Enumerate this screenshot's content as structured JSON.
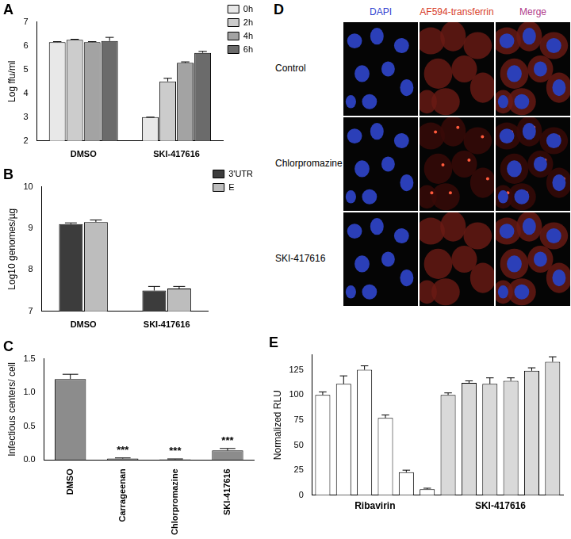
{
  "chart_data": [
    {
      "title": "A",
      "type": "bar",
      "categories": [
        "DMSO",
        "SKI-417616"
      ],
      "series": [
        {
          "name": "0h",
          "color": "#e8e8e8",
          "values": [
            6.15,
            3.0
          ],
          "errors": [
            0.02,
            0
          ]
        },
        {
          "name": "2h",
          "color": "#cccccc",
          "values": [
            6.25,
            4.5
          ],
          "errors": [
            0.02,
            0.13
          ]
        },
        {
          "name": "4h",
          "color": "#a3a3a3",
          "values": [
            6.15,
            5.28
          ],
          "errors": [
            0.02,
            0.04
          ]
        },
        {
          "name": "6h",
          "color": "#6b6b6b",
          "values": [
            6.2,
            5.7
          ],
          "errors": [
            0.15,
            0.06
          ]
        }
      ],
      "y_label": "Log ffu/ml",
      "ylim": [
        2,
        7
      ],
      "yticks": [
        2,
        3,
        4,
        5,
        6,
        7
      ],
      "grid": false,
      "legend": "upper right"
    },
    {
      "title": "B",
      "type": "bar",
      "categories": [
        "DMSO",
        "SKI-417616"
      ],
      "series": [
        {
          "name": "3'UTR",
          "color": "#3c3c3c",
          "values": [
            9.1,
            7.5
          ],
          "errors": [
            0.03,
            0.1
          ]
        },
        {
          "name": "E",
          "color": "#bdbdbd",
          "values": [
            9.15,
            7.55
          ],
          "errors": [
            0.05,
            0.05
          ]
        }
      ],
      "y_label": "Log10 genomes/µg",
      "ylim": [
        7,
        10
      ],
      "yticks": [
        7,
        8,
        9,
        10
      ],
      "grid": false,
      "legend": "upper right"
    },
    {
      "title": "C",
      "type": "bar",
      "categories": [
        "DMSO",
        "Carrageenan",
        "Chlorpromazine",
        "SKI-417616"
      ],
      "values": [
        1.2,
        0.02,
        0.01,
        0.14
      ],
      "errors": [
        0.07,
        0.01,
        0.005,
        0.03
      ],
      "color": "#8c8c8c",
      "y_label": "Infectious centers/ cell",
      "ylim": [
        0,
        1.5
      ],
      "yticks": [
        {
          "value": 0,
          "label": "0.0"
        },
        {
          "value": 0.5,
          "label": "0.5"
        },
        {
          "value": 1,
          "label": "1.0"
        },
        {
          "value": 1.5,
          "label": "1.5"
        }
      ],
      "grid": false,
      "annotations": [
        {
          "category": "Carrageenan",
          "text": "***"
        },
        {
          "category": "Chlorpromazine",
          "text": "***"
        },
        {
          "category": "SKI-417616",
          "text": "***"
        }
      ]
    },
    {
      "title": "E",
      "type": "bar",
      "categories": [
        null,
        null,
        null,
        null,
        null,
        null,
        null,
        null,
        null,
        null,
        null,
        null
      ],
      "values": [
        100,
        111,
        125,
        77,
        23,
        6,
        100,
        112,
        111,
        114,
        124,
        133
      ],
      "errors": [
        3,
        8,
        4,
        3,
        2,
        1,
        2,
        2,
        6,
        3,
        3,
        5
      ],
      "colors": [
        "#ffffff",
        "#ffffff",
        "#ffffff",
        "#ffffff",
        "#ffffff",
        "#ffffff",
        "#d9d9d9",
        "#d9d9d9",
        "#d9d9d9",
        "#d9d9d9",
        "#d9d9d9",
        "#d9d9d9"
      ],
      "groups": [
        "Ribavirin",
        "SKI-417616"
      ],
      "y_label": "Normalized RLU",
      "ylim": [
        0,
        140
      ],
      "yticks": [
        0,
        25,
        50,
        75,
        100,
        125
      ],
      "grid": false
    }
  ],
  "image_panel": {
    "title": "D",
    "columns": [
      "DAPI",
      "AF594-transferrin",
      "Merge"
    ],
    "rows": [
      "Control",
      "Chlorpromazine",
      "SKI-417616"
    ]
  }
}
